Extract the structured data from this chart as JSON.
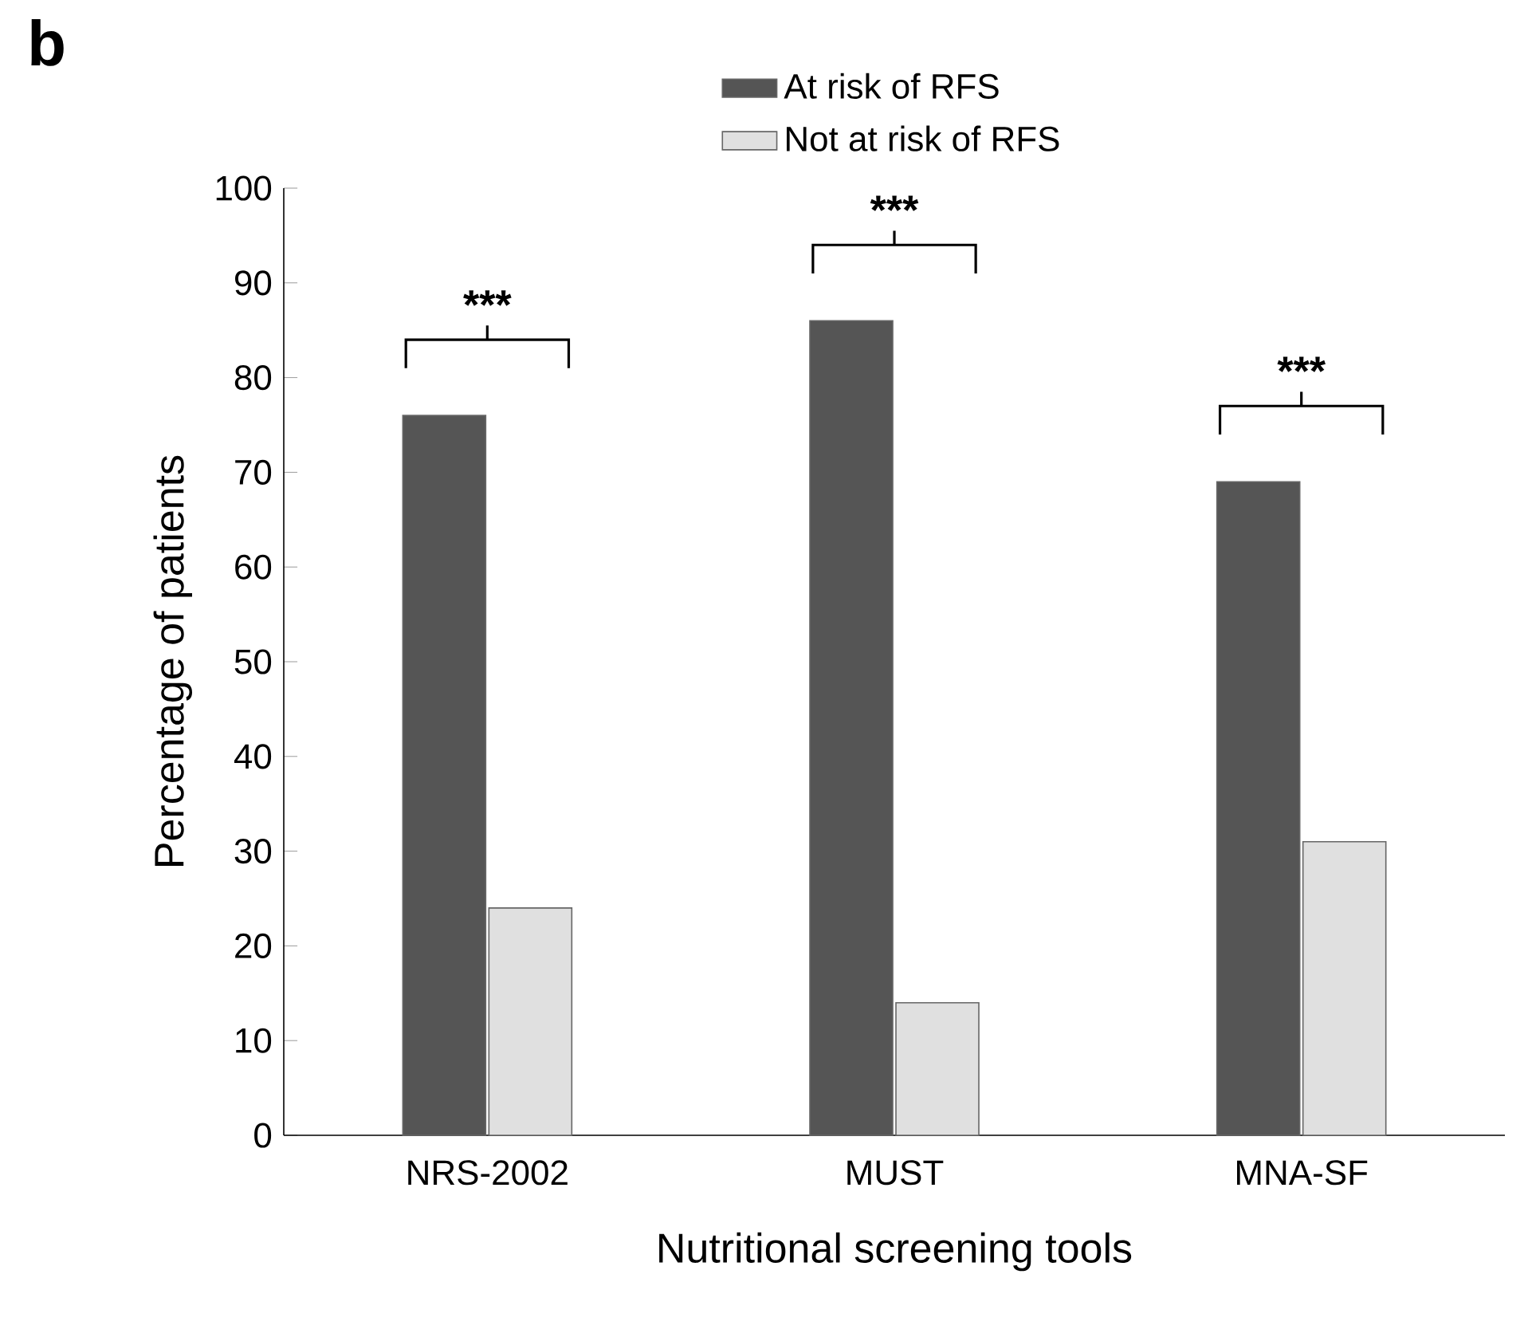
{
  "chart_data": {
    "type": "bar",
    "xlabel": "Nutritional screening tools",
    "ylabel": "Percentage of patients",
    "categories": [
      "NRS-2002",
      "MUST",
      "MNA-SF"
    ],
    "series": [
      {
        "name": "At risk of RFS",
        "color": "#555555",
        "values": [
          76,
          86,
          69
        ]
      },
      {
        "name": "Not at  risk of RFS",
        "color": "#e0e0e0",
        "values": [
          24,
          14,
          31
        ]
      }
    ],
    "ylim": [
      0,
      100
    ],
    "yticks": [
      0,
      10,
      20,
      30,
      40,
      50,
      60,
      70,
      80,
      90,
      100
    ],
    "legend": "top",
    "annotations": [
      "b",
      "***",
      "***",
      "***"
    ]
  }
}
